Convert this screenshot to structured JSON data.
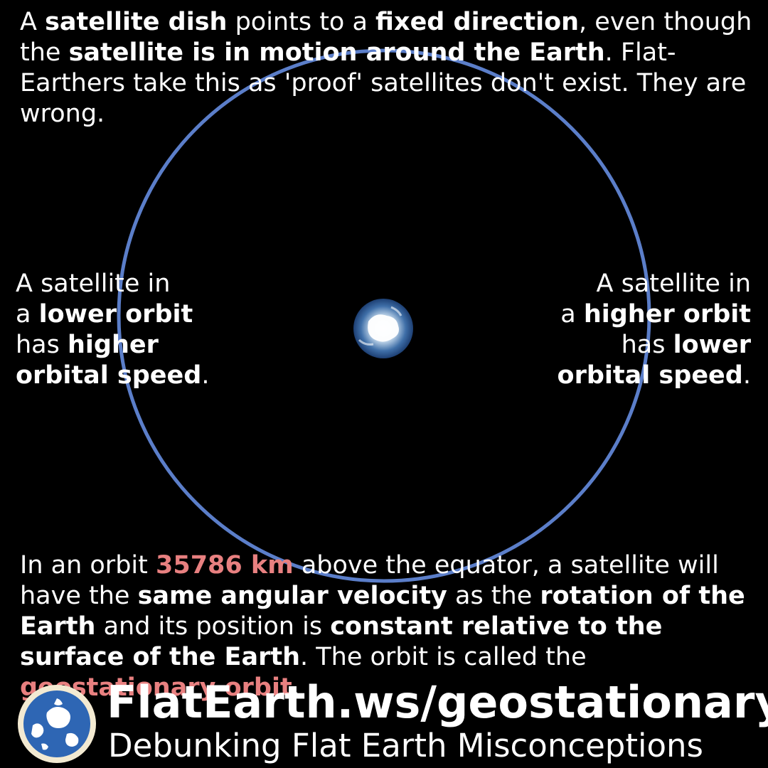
{
  "intro": {
    "t1": "A ",
    "b1": "satellite dish",
    "t2": " points to a ",
    "b2": "fixed direction",
    "t3": ", even though the ",
    "b3": "satellite is in motion around the Earth",
    "t4": ". Flat-Earthers take this as 'proof' satellites don't exist. They are wrong."
  },
  "left_note": {
    "line1": "A satellite in",
    "l2_pre": "a ",
    "l2_b": "lower orbit",
    "l3_pre": "has ",
    "l3_b": "higher",
    "l4_b": "orbital speed",
    "l4_post": "."
  },
  "right_note": {
    "line1": "A satellite in",
    "l2_pre": "a ",
    "l2_b": "higher orbit",
    "l3_pre": "has ",
    "l3_b": "lower",
    "l4_b": "orbital speed",
    "l4_post": "."
  },
  "geo": {
    "t1": "In an orbit ",
    "r1": "35786 km",
    "t2": " above the equator, a satellite will have the ",
    "b1": "same angular velocity",
    "t3": " as the ",
    "b2": "rotation of the Earth",
    "t4": " and its position is ",
    "b3": "constant relative to the surface of the Earth",
    "t5": ". The orbit is called the ",
    "r2": "geostationary orbit",
    "t6": "."
  },
  "footer": {
    "url": "FlatEarth.ws/geostationary",
    "tagline": "Debunking Flat Earth Misconceptions"
  },
  "colors": {
    "orbit": "#5b7ec9",
    "highlight": "#e88080",
    "background": "#000000"
  }
}
